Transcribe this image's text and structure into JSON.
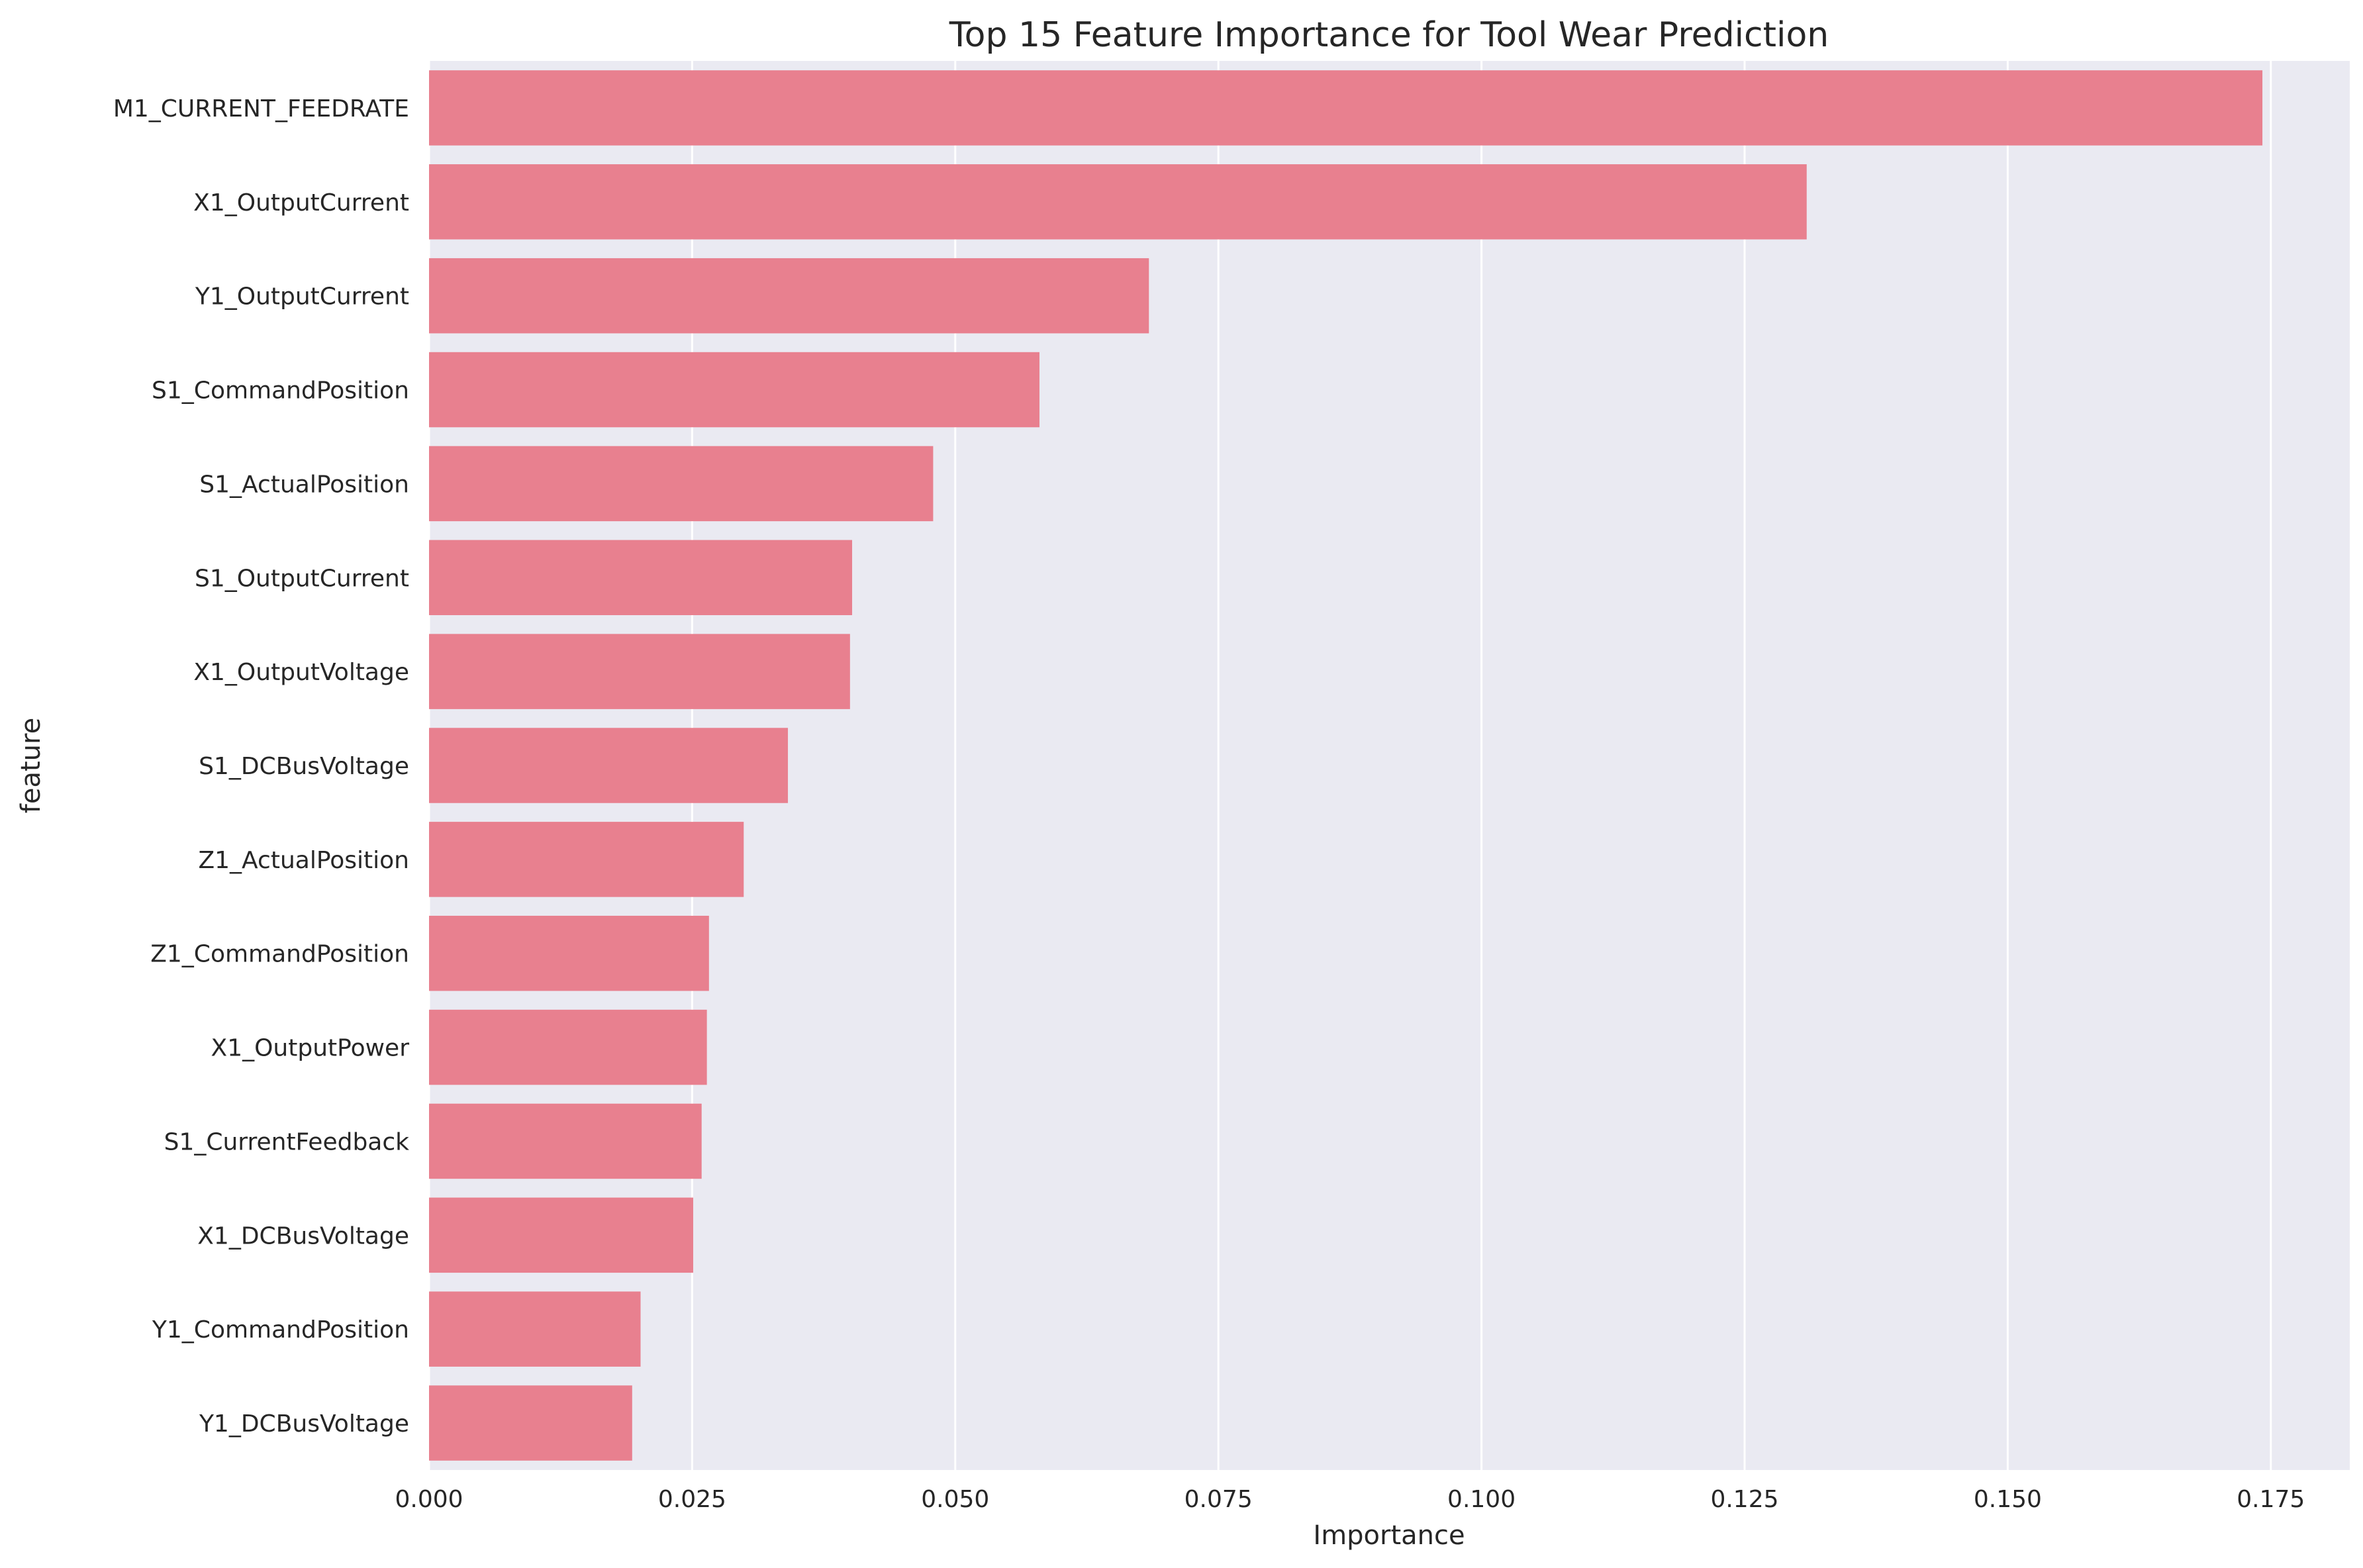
{
  "chart_data": {
    "type": "bar",
    "orientation": "horizontal",
    "title": "Top 15 Feature Importance for Tool Wear Prediction",
    "xlabel": "Importance",
    "ylabel": "feature",
    "xlim": [
      0,
      0.1825
    ],
    "xticks": [
      "0.000",
      "0.025",
      "0.050",
      "0.075",
      "0.100",
      "0.125",
      "0.150",
      "0.175"
    ],
    "grid": true,
    "bar_color": "#E8808F",
    "background_color": "#EAEAF2",
    "categories": [
      "M1_CURRENT_FEEDRATE",
      "X1_OutputCurrent",
      "Y1_OutputCurrent",
      "S1_CommandPosition",
      "S1_ActualPosition",
      "S1_OutputCurrent",
      "X1_OutputVoltage",
      "S1_DCBusVoltage",
      "Z1_ActualPosition",
      "Z1_CommandPosition",
      "X1_OutputPower",
      "S1_CurrentFeedback",
      "X1_DCBusVoltage",
      "Y1_CommandPosition",
      "Y1_DCBusVoltage"
    ],
    "values": [
      0.1742,
      0.1309,
      0.0684,
      0.058,
      0.0479,
      0.0402,
      0.04,
      0.0341,
      0.0299,
      0.0266,
      0.0264,
      0.0259,
      0.0251,
      0.0201,
      0.0193
    ]
  }
}
